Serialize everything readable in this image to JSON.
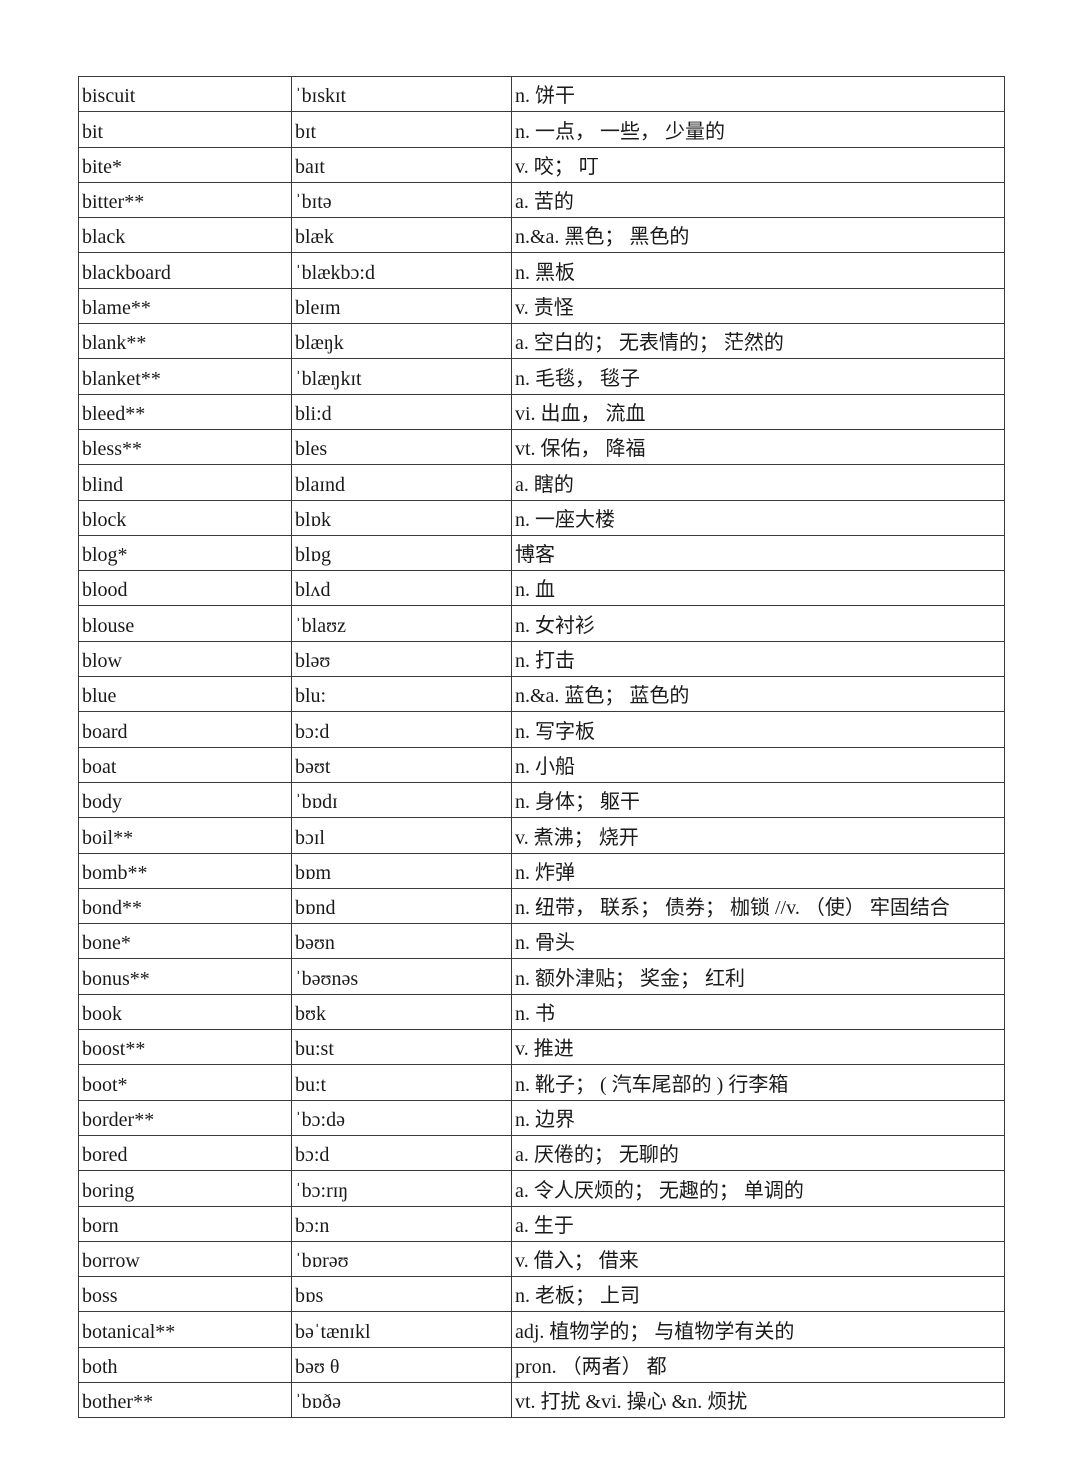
{
  "rows": [
    {
      "word": "biscuit",
      "phonetic": "ˈbɪskɪt",
      "meaning": "n. 饼干"
    },
    {
      "word": "bit",
      "phonetic": "bɪt",
      "meaning": "n. 一点， 一些， 少量的"
    },
    {
      "word": "bite*",
      "phonetic": "baɪt",
      "meaning": "v. 咬； 叮"
    },
    {
      "word": "bitter**",
      "phonetic": "ˈbɪtə",
      "meaning": "a. 苦的"
    },
    {
      "word": "black",
      "phonetic": "blæk",
      "meaning": "n.&a. 黑色； 黑色的"
    },
    {
      "word": "blackboard",
      "phonetic": "ˈblækbɔ:d",
      "meaning": "n. 黑板"
    },
    {
      "word": "blame**",
      "phonetic": "bleɪm",
      "meaning": "v. 责怪"
    },
    {
      "word": "blank**",
      "phonetic": "blæŋk",
      "meaning": "a. 空白的； 无表情的； 茫然的"
    },
    {
      "word": "blanket**",
      "phonetic": "ˈblæŋkɪt",
      "meaning": "n. 毛毯， 毯子"
    },
    {
      "word": "bleed**",
      "phonetic": "bli:d",
      "meaning": "vi. 出血， 流血"
    },
    {
      "word": "bless**",
      "phonetic": "bles",
      "meaning": "vt. 保佑， 降福"
    },
    {
      "word": "blind",
      "phonetic": "blaɪnd",
      "meaning": "a. 瞎的"
    },
    {
      "word": "block",
      "phonetic": "blɒk",
      "meaning": "n. 一座大楼"
    },
    {
      "word": "blog*",
      "phonetic": "blɒg",
      "meaning": "博客"
    },
    {
      "word": "blood",
      "phonetic": "blʌd",
      "meaning": "n. 血"
    },
    {
      "word": "blouse",
      "phonetic": "ˈblaʊz",
      "meaning": "n. 女衬衫"
    },
    {
      "word": "blow",
      "phonetic": "bləʊ",
      "meaning": "n. 打击"
    },
    {
      "word": "blue",
      "phonetic": "blu:",
      "meaning": "n.&a. 蓝色； 蓝色的"
    },
    {
      "word": "board",
      "phonetic": "bɔ:d",
      "meaning": "n. 写字板"
    },
    {
      "word": "boat",
      "phonetic": "bəʊt",
      "meaning": "n. 小船"
    },
    {
      "word": "body",
      "phonetic": "ˈbɒdɪ",
      "meaning": "n. 身体； 躯干"
    },
    {
      "word": "boil**",
      "phonetic": "bɔɪl",
      "meaning": "v. 煮沸； 烧开"
    },
    {
      "word": "bomb**",
      "phonetic": "bɒm",
      "meaning": "n. 炸弹"
    },
    {
      "word": "bond**",
      "phonetic": "bɒnd",
      "meaning": "n. 纽带， 联系； 债券； 枷锁 //v. （使） 牢固结合"
    },
    {
      "word": "bone*",
      "phonetic": "bəʊn",
      "meaning": "n. 骨头"
    },
    {
      "word": "bonus**",
      "phonetic": "ˈbəʊnəs",
      "meaning": "n. 额外津贴； 奖金； 红利"
    },
    {
      "word": "book",
      "phonetic": "bʊk",
      "meaning": "n. 书"
    },
    {
      "word": "boost**",
      "phonetic": "bu:st",
      "meaning": "v. 推进"
    },
    {
      "word": "boot*",
      "phonetic": "bu:t",
      "meaning": "n. 靴子； ( 汽车尾部的 ) 行李箱"
    },
    {
      "word": "border**",
      "phonetic": "ˈbɔ:də",
      "meaning": "n. 边界"
    },
    {
      "word": "bored",
      "phonetic": "bɔ:d",
      "meaning": "a. 厌倦的； 无聊的"
    },
    {
      "word": "boring",
      "phonetic": "ˈbɔ:rɪŋ",
      "meaning": "a. 令人厌烦的； 无趣的； 单调的"
    },
    {
      "word": "born",
      "phonetic": "bɔ:n",
      "meaning": "a. 生于"
    },
    {
      "word": "borrow",
      "phonetic": "ˈbɒrəʊ",
      "meaning": "v. 借入； 借来"
    },
    {
      "word": "boss",
      "phonetic": "bɒs",
      "meaning": "n. 老板； 上司"
    },
    {
      "word": "botanical**",
      "phonetic": "bəˈtænɪkl",
      "meaning": "adj. 植物学的； 与植物学有关的"
    },
    {
      "word": "both",
      "phonetic": "bəʊ θ",
      "meaning": "pron. （两者） 都"
    },
    {
      "word": "bother**",
      "phonetic": "ˈbɒðə",
      "meaning": "vt. 打扰 &vi. 操心 &n. 烦扰"
    }
  ]
}
